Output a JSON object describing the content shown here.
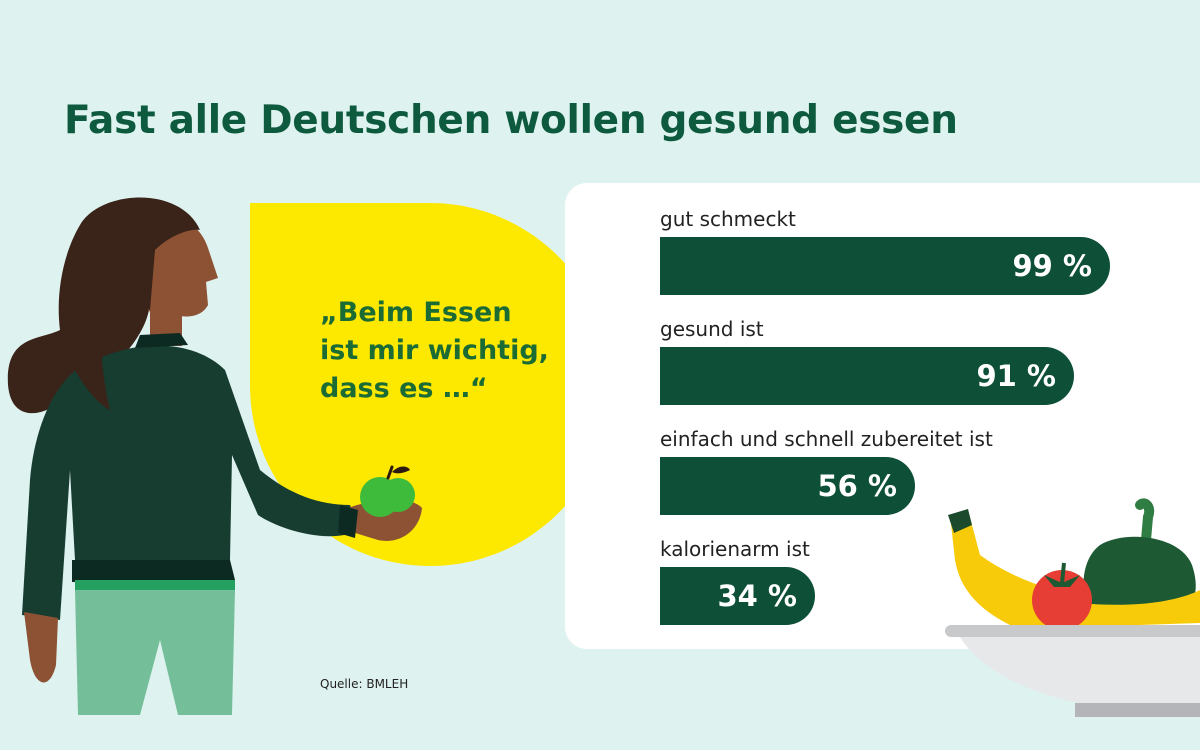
{
  "title": "Fast alle Deutschen wollen gesund essen",
  "quote": "„Beim Essen\nist mir wichtig,\ndass es …“",
  "source": "Quelle: BMLEH",
  "colors": {
    "background": "#def2f0",
    "bar": "#0d4f37",
    "title": "#0d5a3e",
    "bubble": "#fde800",
    "quote": "#1b6b35"
  },
  "chart_data": {
    "type": "bar",
    "orientation": "horizontal",
    "categories": [
      "gut schmeckt",
      "gesund ist",
      "einfach und schnell zubereitet ist",
      "kalorienarm ist"
    ],
    "values": [
      99,
      91,
      56,
      34
    ],
    "value_labels": [
      "99 %",
      "91 %",
      "56 %",
      "34 %"
    ],
    "unit": "%",
    "xlim": [
      0,
      100
    ]
  }
}
